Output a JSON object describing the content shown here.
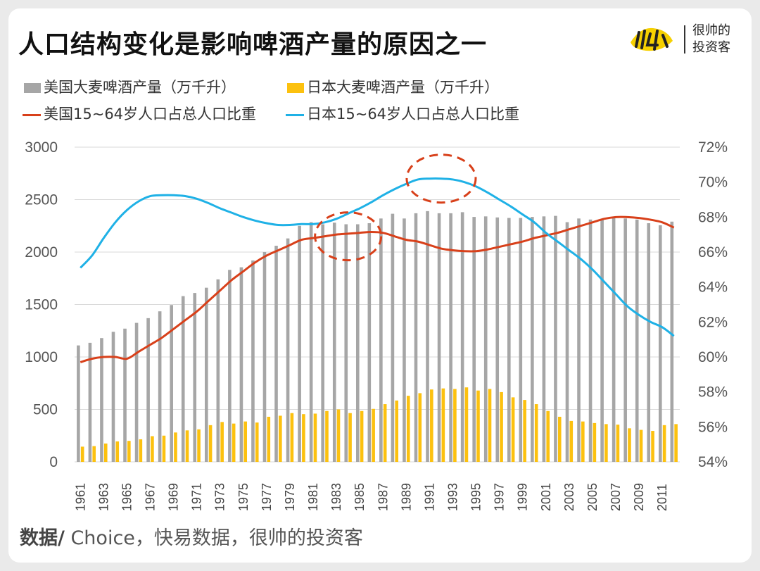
{
  "title": "人口结构变化是影响啤酒产量的原因之一",
  "logo": {
    "line1": "很帅的",
    "line2": "投资客"
  },
  "source": {
    "label": "数据/",
    "text": " Choice，快易数据，很帅的投资客"
  },
  "colors": {
    "us_bar": "#a6a6a6",
    "jp_bar": "#fcc10f",
    "us_line": "#d8401a",
    "jp_line": "#1fb1e6",
    "highlight": "#d8401a",
    "grid": "#d9d9d9"
  },
  "chart_data": {
    "type": "bar+line",
    "title": "人口结构变化是影响啤酒产量的原因之一",
    "years": [
      1961,
      1962,
      1963,
      1964,
      1965,
      1966,
      1967,
      1968,
      1969,
      1970,
      1971,
      1972,
      1973,
      1974,
      1975,
      1976,
      1977,
      1978,
      1979,
      1980,
      1981,
      1982,
      1983,
      1984,
      1985,
      1986,
      1987,
      1988,
      1989,
      1990,
      1991,
      1992,
      1993,
      1994,
      1995,
      1996,
      1997,
      1998,
      1999,
      2000,
      2001,
      2002,
      2003,
      2004,
      2005,
      2006,
      2007,
      2008,
      2009,
      2010,
      2011,
      2012
    ],
    "x_tick_labels": [
      "1961",
      "1963",
      "1965",
      "1967",
      "1969",
      "1971",
      "1973",
      "1975",
      "1977",
      "1979",
      "1981",
      "1983",
      "1985",
      "1987",
      "1989",
      "1991",
      "1993",
      "1995",
      "1997",
      "1999",
      "2001",
      "2003",
      "2005",
      "2007",
      "2009",
      "2011"
    ],
    "y_left": {
      "min": 0,
      "max": 3000,
      "ticks": [
        "0",
        "500",
        "1000",
        "1500",
        "2000",
        "2500",
        "3000"
      ]
    },
    "y_right": {
      "min": 54,
      "max": 72,
      "ticks": [
        "54%",
        "56%",
        "58%",
        "60%",
        "62%",
        "64%",
        "66%",
        "68%",
        "70%",
        "72%"
      ]
    },
    "series": [
      {
        "name": "美国大麦啤酒产量（万千升）",
        "type": "bar",
        "axis": "left",
        "values": [
          1110,
          1135,
          1180,
          1240,
          1270,
          1325,
          1370,
          1435,
          1495,
          1580,
          1610,
          1660,
          1740,
          1830,
          1855,
          1920,
          2000,
          2060,
          2130,
          2250,
          2285,
          2265,
          2280,
          2265,
          2265,
          2275,
          2320,
          2365,
          2320,
          2370,
          2390,
          2370,
          2370,
          2380,
          2335,
          2340,
          2330,
          2325,
          2325,
          2335,
          2340,
          2345,
          2285,
          2320,
          2310,
          2310,
          2330,
          2320,
          2310,
          2275,
          2255,
          2290
        ]
      },
      {
        "name": "日本大麦啤酒产量（万千升）",
        "type": "bar",
        "axis": "left",
        "values": [
          145,
          150,
          175,
          195,
          200,
          215,
          245,
          250,
          280,
          300,
          310,
          350,
          380,
          365,
          385,
          375,
          430,
          440,
          465,
          455,
          460,
          485,
          500,
          465,
          485,
          505,
          550,
          585,
          630,
          655,
          690,
          700,
          695,
          710,
          680,
          695,
          665,
          615,
          590,
          550,
          485,
          430,
          390,
          385,
          370,
          360,
          355,
          320,
          305,
          295,
          350,
          360
        ]
      },
      {
        "name": "美国15~64岁人口占总人口比重",
        "type": "line",
        "axis": "right",
        "values": [
          59.7,
          59.9,
          60.0,
          60.0,
          59.9,
          60.3,
          60.7,
          61.1,
          61.6,
          62.1,
          62.6,
          63.2,
          63.8,
          64.4,
          64.9,
          65.4,
          65.8,
          66.1,
          66.4,
          66.7,
          66.8,
          66.9,
          67.0,
          67.05,
          67.1,
          67.15,
          67.1,
          66.9,
          66.7,
          66.6,
          66.4,
          66.2,
          66.1,
          66.05,
          66.05,
          66.15,
          66.3,
          66.45,
          66.6,
          66.8,
          66.95,
          67.1,
          67.3,
          67.5,
          67.7,
          67.9,
          68.0,
          68.0,
          67.95,
          67.85,
          67.7,
          67.4
        ]
      },
      {
        "name": "日本15~64岁人口占总人口比重",
        "type": "line",
        "axis": "right",
        "values": [
          65.1,
          65.8,
          66.8,
          67.7,
          68.4,
          68.9,
          69.2,
          69.25,
          69.25,
          69.2,
          69.05,
          68.8,
          68.5,
          68.25,
          68.0,
          67.8,
          67.65,
          67.55,
          67.55,
          67.6,
          67.6,
          67.7,
          67.9,
          68.2,
          68.5,
          68.85,
          69.25,
          69.6,
          69.9,
          70.15,
          70.2,
          70.2,
          70.15,
          70.0,
          69.75,
          69.4,
          69.0,
          68.6,
          68.15,
          67.7,
          67.1,
          66.6,
          66.1,
          65.6,
          65.0,
          64.3,
          63.6,
          62.9,
          62.4,
          62.0,
          61.7,
          61.2
        ]
      }
    ]
  }
}
